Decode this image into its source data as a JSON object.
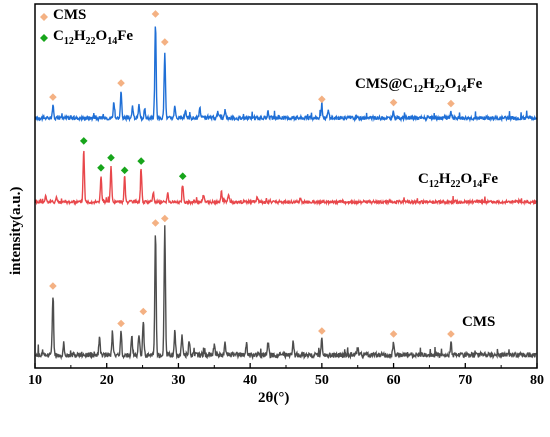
{
  "chart_data": {
    "type": "line",
    "xlabel": "2θ(°)",
    "ylabel": "intensity(a.u.)",
    "xlim": [
      10,
      80
    ],
    "xticks": [
      10,
      20,
      30,
      40,
      50,
      60,
      70,
      80
    ],
    "legend": {
      "placement": "top-left",
      "entries": [
        {
          "marker": "diamond",
          "color": "#f4b183",
          "label": "CMS"
        },
        {
          "marker": "diamond",
          "color": "#17a51b",
          "label_main": "C",
          "sub1": "12",
          "mid1": "H",
          "sub2": "22",
          "mid2": "O",
          "sub3": "14",
          "tail": "Fe"
        }
      ]
    },
    "series": [
      {
        "name": "CMS@C12H22O14Fe",
        "label_parts": [
          "CMS@C",
          "12",
          "H",
          "22",
          "O",
          "14",
          "Fe"
        ],
        "color": "#1f6fd6",
        "baseline": 0.08,
        "peaks": [
          {
            "x": 12.5,
            "h": 0.11
          },
          {
            "x": 21.0,
            "h": 0.15
          },
          {
            "x": 22.0,
            "h": 0.24
          },
          {
            "x": 23.6,
            "h": 0.1
          },
          {
            "x": 24.5,
            "h": 0.12
          },
          {
            "x": 25.3,
            "h": 0.1
          },
          {
            "x": 26.8,
            "h": 0.88
          },
          {
            "x": 28.1,
            "h": 0.62
          },
          {
            "x": 29.5,
            "h": 0.12
          },
          {
            "x": 31.0,
            "h": 0.08
          },
          {
            "x": 33.0,
            "h": 0.09
          },
          {
            "x": 35.5,
            "h": 0.06
          },
          {
            "x": 36.5,
            "h": 0.07
          },
          {
            "x": 42.5,
            "h": 0.06
          },
          {
            "x": 50.0,
            "h": 0.09
          },
          {
            "x": 50.9,
            "h": 0.07
          },
          {
            "x": 60.0,
            "h": 0.06
          },
          {
            "x": 68.0,
            "h": 0.05
          }
        ],
        "markers": [
          {
            "x": 12.5,
            "type": "CMS"
          },
          {
            "x": 22.0,
            "type": "CMS"
          },
          {
            "x": 26.8,
            "type": "CMS"
          },
          {
            "x": 28.1,
            "type": "CMS"
          },
          {
            "x": 50.0,
            "type": "CMS"
          },
          {
            "x": 60.0,
            "type": "CMS"
          },
          {
            "x": 68.0,
            "type": "CMS"
          }
        ]
      },
      {
        "name": "C12H22O14Fe",
        "label_parts": [
          "C",
          "12",
          "H",
          "22",
          "O",
          "14",
          "Fe"
        ],
        "color": "#e8474b",
        "baseline": 0.08,
        "peaks": [
          {
            "x": 11.5,
            "h": 0.08
          },
          {
            "x": 13.0,
            "h": 0.06
          },
          {
            "x": 16.8,
            "h": 0.62
          },
          {
            "x": 19.2,
            "h": 0.3
          },
          {
            "x": 20.6,
            "h": 0.42
          },
          {
            "x": 22.5,
            "h": 0.27
          },
          {
            "x": 24.8,
            "h": 0.38
          },
          {
            "x": 26.5,
            "h": 0.12
          },
          {
            "x": 28.5,
            "h": 0.1
          },
          {
            "x": 30.6,
            "h": 0.2
          },
          {
            "x": 33.5,
            "h": 0.08
          },
          {
            "x": 36.0,
            "h": 0.12
          },
          {
            "x": 37.0,
            "h": 0.1
          },
          {
            "x": 41.0,
            "h": 0.06
          },
          {
            "x": 47.0,
            "h": 0.05
          }
        ],
        "markers": [
          {
            "x": 16.8,
            "type": "C12H22O14Fe"
          },
          {
            "x": 19.2,
            "type": "C12H22O14Fe"
          },
          {
            "x": 20.6,
            "type": "C12H22O14Fe"
          },
          {
            "x": 22.5,
            "type": "C12H22O14Fe"
          },
          {
            "x": 24.8,
            "type": "C12H22O14Fe"
          },
          {
            "x": 30.6,
            "type": "C12H22O14Fe"
          }
        ]
      },
      {
        "name": "CMS",
        "label_parts": [
          "CMS"
        ],
        "color": "#4d4d4d",
        "baseline": 0.06,
        "peaks": [
          {
            "x": 12.5,
            "h": 0.4
          },
          {
            "x": 14.0,
            "h": 0.08
          },
          {
            "x": 19.0,
            "h": 0.12
          },
          {
            "x": 20.8,
            "h": 0.15
          },
          {
            "x": 22.0,
            "h": 0.15
          },
          {
            "x": 23.5,
            "h": 0.12
          },
          {
            "x": 24.5,
            "h": 0.14
          },
          {
            "x": 25.1,
            "h": 0.23
          },
          {
            "x": 26.8,
            "h": 0.82
          },
          {
            "x": 28.1,
            "h": 0.85
          },
          {
            "x": 29.5,
            "h": 0.16
          },
          {
            "x": 30.5,
            "h": 0.14
          },
          {
            "x": 31.5,
            "h": 0.1
          },
          {
            "x": 35.0,
            "h": 0.07
          },
          {
            "x": 36.5,
            "h": 0.09
          },
          {
            "x": 39.5,
            "h": 0.07
          },
          {
            "x": 42.5,
            "h": 0.08
          },
          {
            "x": 46.0,
            "h": 0.09
          },
          {
            "x": 50.0,
            "h": 0.1
          },
          {
            "x": 55.0,
            "h": 0.05
          },
          {
            "x": 60.0,
            "h": 0.08
          },
          {
            "x": 68.0,
            "h": 0.08
          }
        ],
        "markers": [
          {
            "x": 12.5,
            "type": "CMS"
          },
          {
            "x": 22.0,
            "type": "CMS"
          },
          {
            "x": 25.1,
            "type": "CMS"
          },
          {
            "x": 26.8,
            "type": "CMS"
          },
          {
            "x": 28.1,
            "type": "CMS"
          },
          {
            "x": 50.0,
            "type": "CMS"
          },
          {
            "x": 60.0,
            "type": "CMS"
          },
          {
            "x": 68.0,
            "type": "CMS"
          }
        ]
      }
    ],
    "marker_colors": {
      "CMS": "#f4b183",
      "C12H22O14Fe": "#17a51b"
    },
    "grid": false
  }
}
